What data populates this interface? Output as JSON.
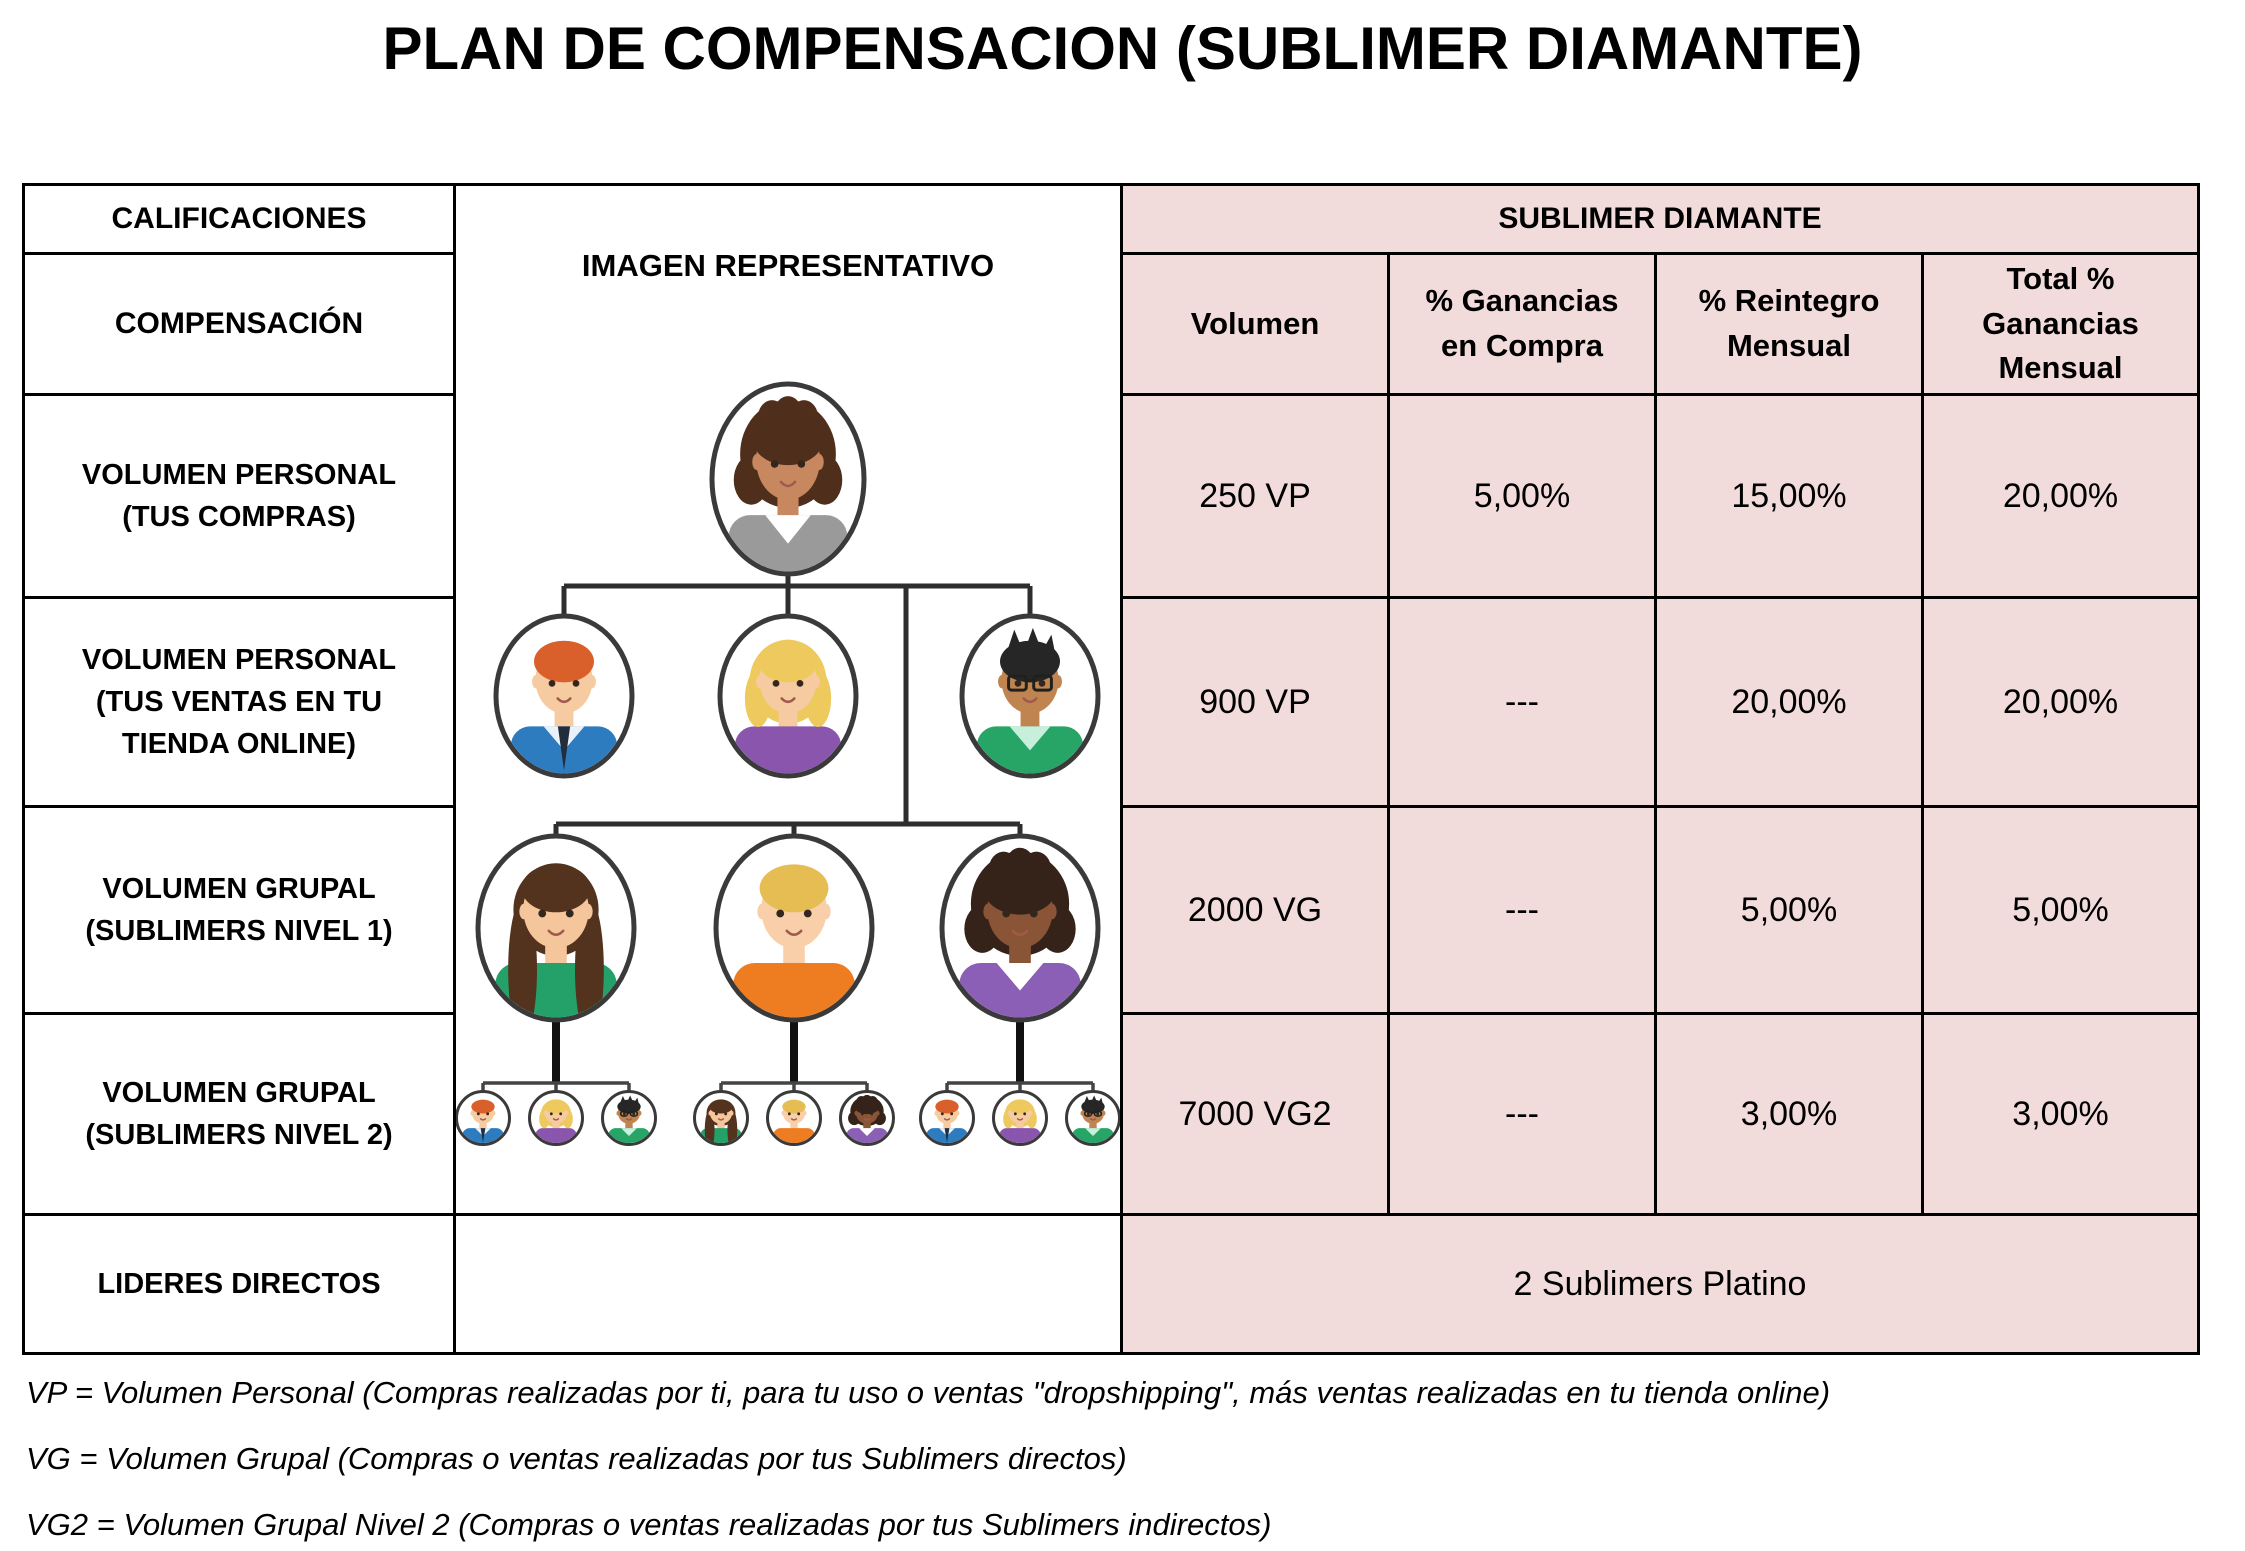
{
  "title": "PLAN DE COMPENSACION (SUBLIMER DIAMANTE)",
  "table": {
    "calificaciones_header": "CALIFICACIONES",
    "compensacion_header": "COMPENSACIÓN",
    "imagen_header": "IMAGEN REPRESENTATIVO",
    "group_header": "SUBLIMER DIAMANTE",
    "columns": {
      "volumen": "Volumen",
      "ganancias": "% Ganancias en Compra",
      "reintegro": "% Reintegro Mensual",
      "total": "Total % Ganancias Mensual"
    },
    "rows": [
      {
        "label": "VOLUMEN PERSONAL (TUS COMPRAS)",
        "volumen": "250 VP",
        "ganancias": "5,00%",
        "reintegro": "15,00%",
        "total": "20,00%"
      },
      {
        "label": "VOLUMEN PERSONAL (TUS VENTAS EN TU TIENDA ONLINE)",
        "volumen": "900 VP",
        "ganancias": "---",
        "reintegro": "20,00%",
        "total": "20,00%"
      },
      {
        "label": "VOLUMEN GRUPAL (SUBLIMERS NIVEL 1)",
        "volumen": "2000 VG",
        "ganancias": "---",
        "reintegro": "5,00%",
        "total": "5,00%"
      },
      {
        "label": "VOLUMEN GRUPAL (SUBLIMERS NIVEL 2)",
        "volumen": "7000 VG2",
        "ganancias": "---",
        "reintegro": "3,00%",
        "total": "3,00%"
      }
    ],
    "lideres_label": "LIDERES DIRECTOS",
    "lideres_value": "2 Sublimers Platino"
  },
  "footnotes": [
    "VP = Volumen Personal (Compras realizadas por ti, para tu uso o ventas \"dropshipping\", más ventas realizadas en tu tienda online)",
    "VG = Volumen Grupal (Compras o ventas realizadas por tus Sublimers directos)",
    "VG2 = Volumen Grupal Nivel 2 (Compras o ventas realizadas por tus Sublimers indirectos)"
  ],
  "colors": {
    "highlight_bg": "#f2dcdb",
    "border": "#000000",
    "avatar_outline": "#3a3a3a",
    "connector": "#2e2e2e"
  },
  "org_chart": {
    "people": {
      "leader-woman-gray-blazer": {
        "skin": "#c7875f",
        "hair": "#4f2f1c",
        "style": "curly",
        "top": "#9a9a9a",
        "collar": "#ffffff"
      },
      "man-redhead-blue-shirt": {
        "skin": "#f7cba1",
        "hair": "#d9602a",
        "style": "short",
        "top": "#2e7cc0",
        "collar": "#e9f2fa",
        "tie": "#232c3a"
      },
      "woman-blonde-purple-top": {
        "skin": "#f7cba1",
        "hair": "#edc95e",
        "style": "bob",
        "top": "#8a55ad"
      },
      "man-blackhair-green-sweater": {
        "skin": "#bf8450",
        "hair": "#262626",
        "style": "spiky",
        "top": "#27a567",
        "collar": "#c7efdb",
        "glasses": true
      },
      "woman-brunette-green-blouse": {
        "skin": "#f5c69c",
        "hair": "#53321e",
        "style": "long",
        "top": "#23a169"
      },
      "man-blond-orange-shirt": {
        "skin": "#f8cfa8",
        "hair": "#e5bd52",
        "style": "short",
        "top": "#ee7c20"
      },
      "woman-dark-purple-blazer": {
        "skin": "#8a5537",
        "hair": "#35231a",
        "style": "afro",
        "top": "#8a5fb5",
        "collar": "#ffffff"
      }
    },
    "root": "leader-woman-gray-blazer",
    "level1": [
      "man-redhead-blue-shirt",
      "woman-blonde-purple-top",
      "man-blackhair-green-sweater"
    ],
    "level2": [
      "woman-brunette-green-blouse",
      "man-blond-orange-shirt",
      "woman-dark-purple-blazer"
    ],
    "level3": [
      [
        "man-redhead-blue-shirt",
        "woman-blonde-purple-top",
        "man-blackhair-green-sweater"
      ],
      [
        "woman-brunette-green-blouse",
        "man-blond-orange-shirt",
        "woman-dark-purple-blazer"
      ],
      [
        "man-redhead-blue-shirt",
        "woman-blonde-purple-top",
        "man-blackhair-green-sweater"
      ]
    ]
  }
}
